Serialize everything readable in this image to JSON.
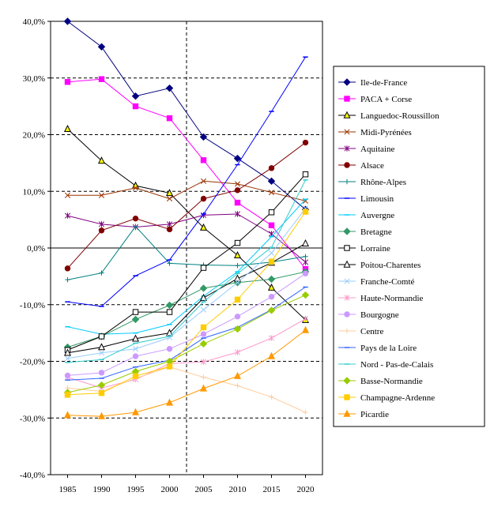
{
  "chart_data": {
    "type": "line",
    "x": [
      1985,
      1990,
      1995,
      2000,
      2005,
      2010,
      2015,
      2020
    ],
    "ylim": [
      -40,
      40
    ],
    "yticks": [
      40,
      30,
      20,
      10,
      0,
      -10,
      -20,
      -30,
      -40
    ],
    "ytick_labels": [
      "40,0%",
      "30,0%",
      "20,0%",
      "10,0%",
      "0,0%",
      "-10,0%",
      "-20,0%",
      "-30,0%",
      "-40,0%"
    ],
    "xtick_labels": [
      "1985",
      "1990",
      "1995",
      "2000",
      "2005",
      "2010",
      "2015",
      "2020"
    ],
    "reference_line_x": 2002.5,
    "grid": "dashed horizontal gridlines at 10% steps",
    "legend_position": "right",
    "series": [
      {
        "name": "Ile-de-France",
        "color": "#000080",
        "marker": "diamond-filled",
        "values": [
          40.0,
          35.5,
          26.8,
          28.2,
          19.6,
          15.8,
          11.8,
          6.8
        ]
      },
      {
        "name": "PACA + Corse",
        "color": "#ff00ff",
        "marker": "square-filled",
        "values": [
          29.3,
          29.8,
          25.0,
          22.9,
          15.5,
          8.0,
          4.0,
          -3.7
        ]
      },
      {
        "name": "Languedoc-Roussillon",
        "color": "#000000",
        "fill": "#ffff00",
        "marker": "triangle-open",
        "values": [
          21.0,
          15.4,
          11.0,
          9.7,
          3.6,
          -1.3,
          -7.0,
          -12.7
        ]
      },
      {
        "name": "Midi-Pyrénées",
        "color": "#993300",
        "marker": "x",
        "values": [
          9.3,
          9.3,
          10.6,
          8.7,
          11.8,
          11.3,
          9.8,
          8.3
        ]
      },
      {
        "name": "Aquitaine",
        "color": "#800080",
        "marker": "star",
        "values": [
          5.7,
          4.2,
          3.7,
          4.2,
          5.8,
          6.0,
          2.5,
          -2.5
        ]
      },
      {
        "name": "Alsace",
        "color": "#800000",
        "marker": "circle-filled",
        "values": [
          -3.6,
          3.1,
          5.2,
          3.3,
          8.7,
          10.2,
          14.1,
          18.6
        ]
      },
      {
        "name": "Rhône-Alpes",
        "color": "#008080",
        "marker": "plus",
        "values": [
          -5.6,
          -4.4,
          3.8,
          -2.7,
          -3.0,
          -3.1,
          -2.5,
          -1.5
        ]
      },
      {
        "name": "Limousin",
        "color": "#0000ff",
        "marker": "dash",
        "values": [
          -9.5,
          -10.3,
          -4.9,
          -2.1,
          6.0,
          14.7,
          24.1,
          33.7
        ]
      },
      {
        "name": "Auvergne",
        "color": "#00ccff",
        "marker": "dash",
        "values": [
          -13.9,
          -15.2,
          -15.0,
          -13.5,
          -8.5,
          -4.2,
          2.0,
          8.6
        ]
      },
      {
        "name": "Bretagne",
        "color": "#339966",
        "marker": "diamond-filled",
        "values": [
          -17.5,
          -15.6,
          -12.6,
          -10.1,
          -7.1,
          -6.1,
          -5.5,
          -4.2
        ]
      },
      {
        "name": "Lorraine",
        "color": "#000000",
        "fill": "#ffffff",
        "marker": "square-open",
        "values": [
          -18.0,
          -15.6,
          -11.3,
          -11.3,
          -3.5,
          0.9,
          6.3,
          13.0
        ]
      },
      {
        "name": "Poitou-Charentes",
        "color": "#000000",
        "fill": "#ffffff",
        "marker": "triangle-open",
        "values": [
          -18.5,
          -17.5,
          -16.0,
          -15.0,
          -8.8,
          -5.4,
          -2.6,
          0.8
        ]
      },
      {
        "name": "Franche-Comté",
        "color": "#99ccff",
        "marker": "x",
        "values": [
          -19.5,
          -18.5,
          -17.8,
          -15.8,
          -10.9,
          -6.1,
          -0.9,
          7.0
        ]
      },
      {
        "name": "Haute-Normandie",
        "color": "#ff99cc",
        "marker": "star",
        "values": [
          -22.8,
          -24.7,
          -23.2,
          -20.4,
          -20.1,
          -18.4,
          -15.9,
          -12.5
        ]
      },
      {
        "name": "Bourgogne",
        "color": "#cc99ff",
        "marker": "circle-filled",
        "values": [
          -22.5,
          -22.0,
          -19.1,
          -17.8,
          -15.2,
          -12.1,
          -8.6,
          -4.5
        ]
      },
      {
        "name": "Centre",
        "color": "#ffcc99",
        "marker": "plus",
        "values": [
          -24.7,
          -25.3,
          -23.0,
          -21.0,
          -22.8,
          -24.3,
          -26.3,
          -29.0
        ]
      },
      {
        "name": "Pays de la Loire",
        "color": "#3366ff",
        "marker": "dash",
        "values": [
          -23.3,
          -23.0,
          -21.0,
          -19.8,
          -15.9,
          -14.0,
          -10.9,
          -6.9
        ]
      },
      {
        "name": "Nord - Pas-de-Calais",
        "color": "#33cccc",
        "marker": "dash",
        "values": [
          -20.2,
          -19.7,
          -16.8,
          -15.6,
          -9.5,
          -4.5,
          0.1,
          12.0
        ]
      },
      {
        "name": "Basse-Normandie",
        "color": "#99cc00",
        "marker": "diamond-filled",
        "values": [
          -25.5,
          -24.2,
          -21.8,
          -20.0,
          -16.9,
          -14.3,
          -11.0,
          -8.3
        ]
      },
      {
        "name": "Champagne-Ardenne",
        "color": "#ffcc00",
        "marker": "square-filled",
        "values": [
          -25.9,
          -25.6,
          -22.6,
          -20.9,
          -14.0,
          -9.1,
          -2.4,
          6.4
        ]
      },
      {
        "name": "Picardie",
        "color": "#ff9900",
        "marker": "triangle-filled",
        "values": [
          -29.5,
          -29.7,
          -29.0,
          -27.3,
          -24.8,
          -22.6,
          -19.1,
          -14.5
        ]
      }
    ]
  }
}
